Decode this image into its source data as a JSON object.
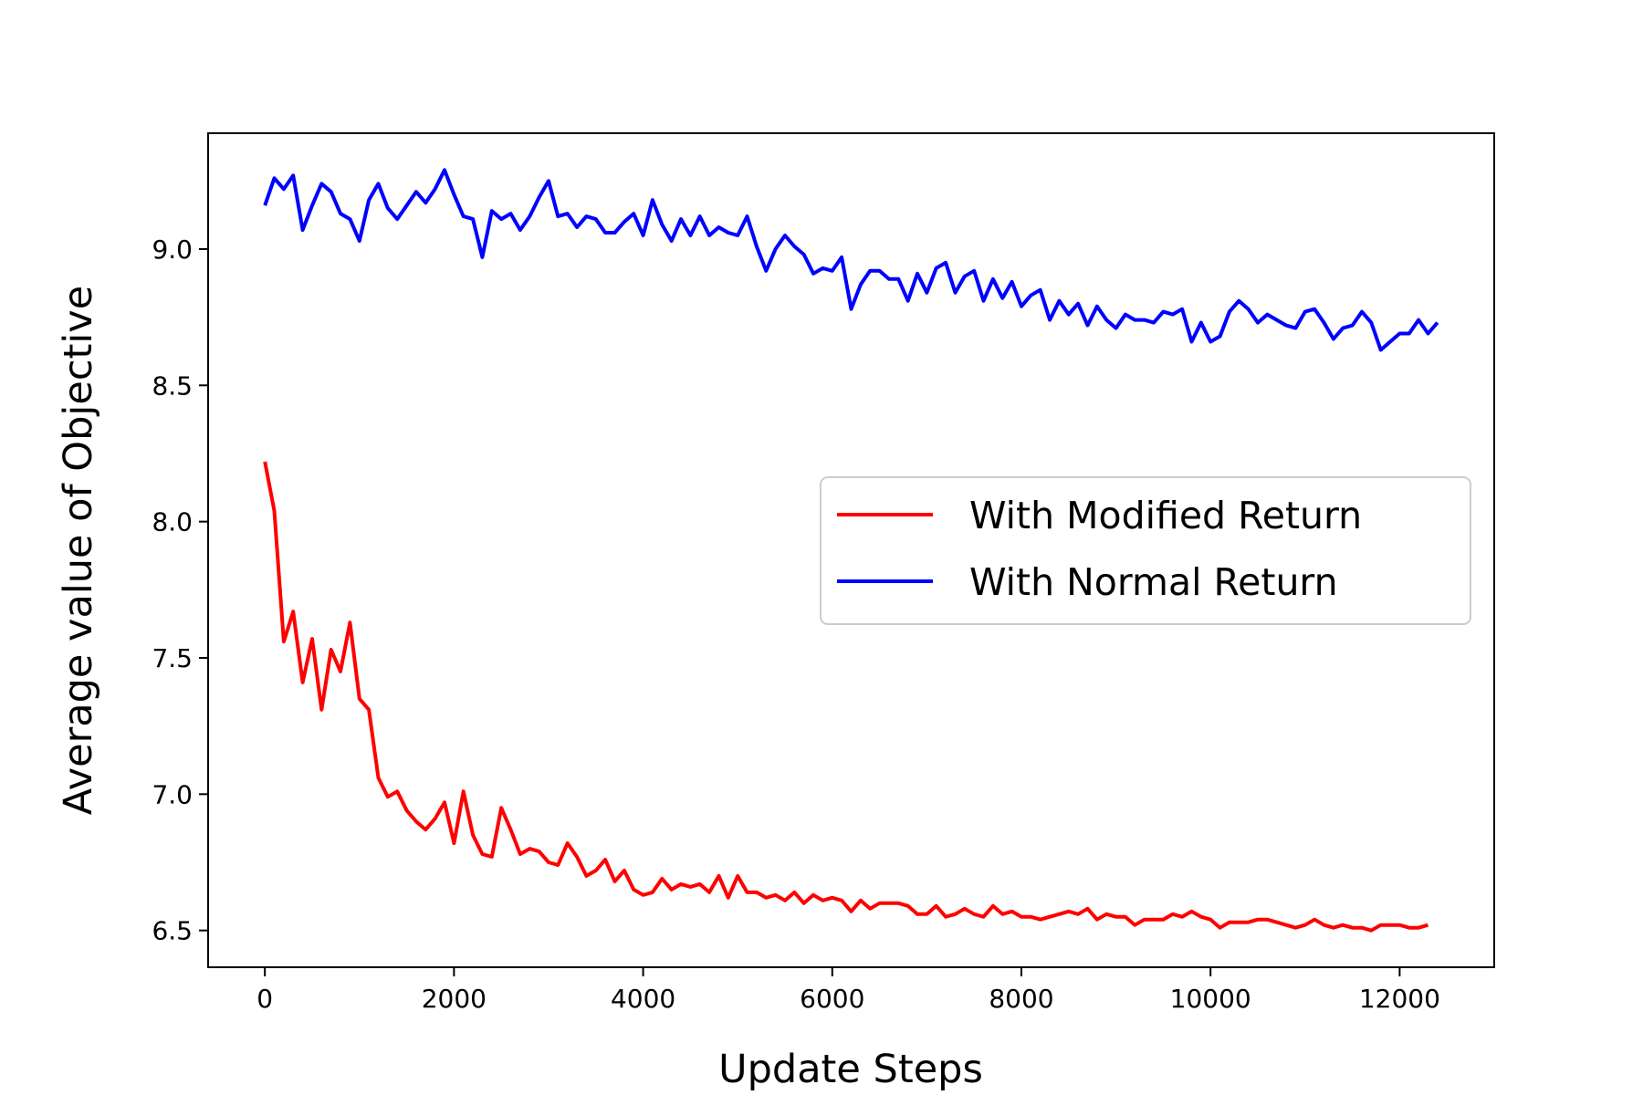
{
  "chart_data": {
    "type": "line",
    "title": "",
    "xlabel": "Update Steps",
    "ylabel": "Average value of Objective",
    "xlim": [
      -600,
      13000
    ],
    "ylim": [
      6.365,
      9.425
    ],
    "xticks": [
      0,
      2000,
      4000,
      6000,
      8000,
      10000,
      12000
    ],
    "yticks": [
      6.5,
      7.0,
      7.5,
      8.0,
      8.5,
      9.0
    ],
    "xtick_labels": [
      "0",
      "2000",
      "4000",
      "6000",
      "8000",
      "10000",
      "12000"
    ],
    "ytick_labels": [
      "6.5",
      "7.0",
      "7.5",
      "8.0",
      "8.5",
      "9.0"
    ],
    "grid": false,
    "legend": {
      "placement": "center-right"
    },
    "x_start": 0,
    "x_step": 100,
    "series": [
      {
        "name": "With Modified Return",
        "color": "#ff0000",
        "values": [
          8.22,
          8.04,
          7.56,
          7.67,
          7.41,
          7.57,
          7.31,
          7.53,
          7.45,
          7.63,
          7.35,
          7.31,
          7.06,
          6.99,
          7.01,
          6.94,
          6.9,
          6.87,
          6.91,
          6.97,
          6.82,
          7.01,
          6.85,
          6.78,
          6.77,
          6.95,
          6.87,
          6.78,
          6.8,
          6.79,
          6.75,
          6.74,
          6.82,
          6.77,
          6.7,
          6.72,
          6.76,
          6.68,
          6.72,
          6.65,
          6.63,
          6.64,
          6.69,
          6.65,
          6.67,
          6.66,
          6.67,
          6.64,
          6.7,
          6.62,
          6.7,
          6.64,
          6.64,
          6.62,
          6.63,
          6.61,
          6.64,
          6.6,
          6.63,
          6.61,
          6.62,
          6.61,
          6.57,
          6.61,
          6.58,
          6.6,
          6.6,
          6.6,
          6.59,
          6.56,
          6.56,
          6.59,
          6.55,
          6.56,
          6.58,
          6.56,
          6.55,
          6.59,
          6.56,
          6.57,
          6.55,
          6.55,
          6.54,
          6.55,
          6.56,
          6.57,
          6.56,
          6.58,
          6.54,
          6.56,
          6.55,
          6.55,
          6.52,
          6.54,
          6.54,
          6.54,
          6.56,
          6.55,
          6.57,
          6.55,
          6.54,
          6.51,
          6.53,
          6.53,
          6.53,
          6.54,
          6.54,
          6.53,
          6.52,
          6.51,
          6.52,
          6.54,
          6.52,
          6.51,
          6.52,
          6.51,
          6.51,
          6.5,
          6.52,
          6.52,
          6.52,
          6.51,
          6.51,
          6.52
        ]
      },
      {
        "name": "With Normal Return",
        "color": "#0000ff",
        "values": [
          9.16,
          9.26,
          9.22,
          9.27,
          9.07,
          9.16,
          9.24,
          9.21,
          9.13,
          9.11,
          9.03,
          9.18,
          9.24,
          9.15,
          9.11,
          9.16,
          9.21,
          9.17,
          9.22,
          9.29,
          9.2,
          9.12,
          9.11,
          8.97,
          9.14,
          9.11,
          9.13,
          9.07,
          9.12,
          9.19,
          9.25,
          9.12,
          9.13,
          9.08,
          9.12,
          9.11,
          9.06,
          9.06,
          9.1,
          9.13,
          9.05,
          9.18,
          9.09,
          9.03,
          9.11,
          9.05,
          9.12,
          9.05,
          9.08,
          9.06,
          9.05,
          9.12,
          9.01,
          8.92,
          9.0,
          9.05,
          9.01,
          8.98,
          8.91,
          8.93,
          8.92,
          8.97,
          8.78,
          8.87,
          8.92,
          8.92,
          8.89,
          8.89,
          8.81,
          8.91,
          8.84,
          8.93,
          8.95,
          8.84,
          8.9,
          8.92,
          8.81,
          8.89,
          8.82,
          8.88,
          8.79,
          8.83,
          8.85,
          8.74,
          8.81,
          8.76,
          8.8,
          8.72,
          8.79,
          8.74,
          8.71,
          8.76,
          8.74,
          8.74,
          8.73,
          8.77,
          8.76,
          8.78,
          8.66,
          8.73,
          8.66,
          8.68,
          8.77,
          8.81,
          8.78,
          8.73,
          8.76,
          8.74,
          8.72,
          8.71,
          8.77,
          8.78,
          8.73,
          8.67,
          8.71,
          8.72,
          8.77,
          8.73,
          8.63,
          8.66,
          8.69,
          8.69,
          8.74,
          8.69,
          8.73
        ]
      }
    ]
  }
}
